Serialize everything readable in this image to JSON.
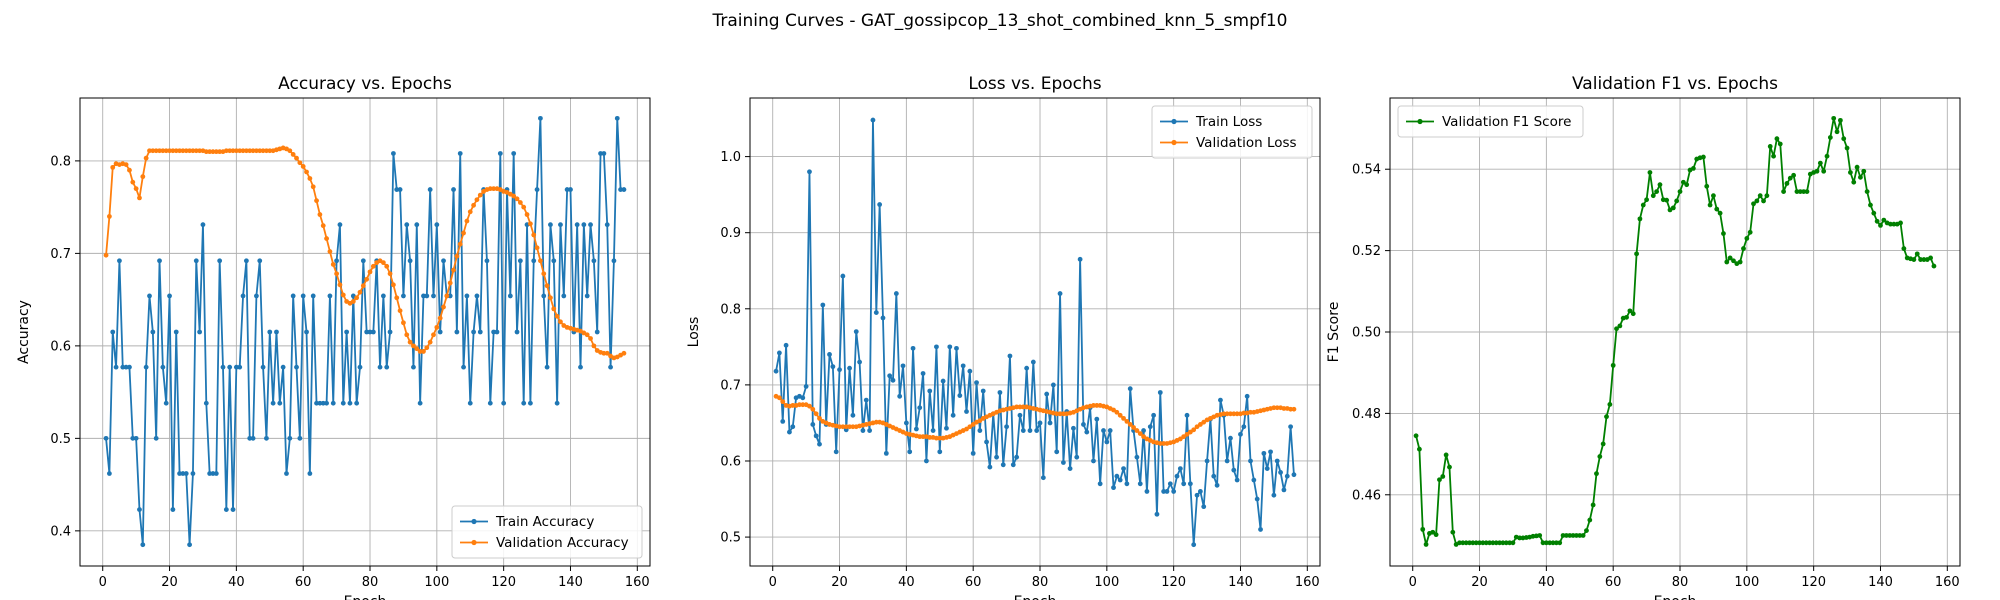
{
  "figure": {
    "title": "Training Curves - GAT_gossipcop_13_shot_combined_knn_5_smpf10"
  },
  "colors": {
    "blue": "#1f77b4",
    "orange": "#ff7f0e",
    "green": "#008000"
  },
  "chart_data": [
    {
      "type": "line",
      "title": "Accuracy vs. Epochs",
      "xlabel": "Epoch",
      "ylabel": "Accuracy",
      "xlim": [
        -6.8,
        163.8
      ],
      "ylim": [
        0.362,
        0.868
      ],
      "xticks": [
        0,
        20,
        40,
        60,
        80,
        100,
        120,
        140,
        160
      ],
      "yticks": [
        0.4,
        0.5,
        0.6,
        0.7,
        0.8
      ],
      "ytick_labels": [
        "0.4",
        "0.5",
        "0.6",
        "0.7",
        "0.8"
      ],
      "grid": true,
      "legend": "lower right",
      "x_start": 1,
      "series": [
        {
          "name": "Train Accuracy",
          "color": "#1f77b4",
          "values": [
            0.5,
            0.462,
            0.615,
            0.577,
            0.692,
            0.577,
            0.577,
            0.577,
            0.5,
            0.5,
            0.423,
            0.385,
            0.577,
            0.654,
            0.615,
            0.5,
            0.692,
            0.577,
            0.538,
            0.654,
            0.423,
            0.615,
            0.462,
            0.462,
            0.462,
            0.385,
            0.462,
            0.692,
            0.615,
            0.731,
            0.538,
            0.462,
            0.462,
            0.462,
            0.692,
            0.577,
            0.423,
            0.577,
            0.423,
            0.577,
            0.577,
            0.654,
            0.692,
            0.5,
            0.5,
            0.654,
            0.692,
            0.577,
            0.5,
            0.615,
            0.538,
            0.615,
            0.538,
            0.577,
            0.462,
            0.5,
            0.654,
            0.577,
            0.5,
            0.654,
            0.615,
            0.462,
            0.654,
            0.538,
            0.538,
            0.538,
            0.538,
            0.654,
            0.538,
            0.692,
            0.731,
            0.538,
            0.615,
            0.538,
            0.654,
            0.538,
            0.577,
            0.692,
            0.615,
            0.615,
            0.615,
            0.692,
            0.577,
            0.654,
            0.577,
            0.615,
            0.808,
            0.769,
            0.769,
            0.654,
            0.731,
            0.692,
            0.577,
            0.731,
            0.538,
            0.654,
            0.654,
            0.769,
            0.654,
            0.731,
            0.615,
            0.692,
            0.654,
            0.654,
            0.769,
            0.615,
            0.808,
            0.577,
            0.654,
            0.538,
            0.615,
            0.654,
            0.615,
            0.769,
            0.692,
            0.538,
            0.615,
            0.615,
            0.808,
            0.538,
            0.769,
            0.654,
            0.808,
            0.615,
            0.692,
            0.538,
            0.731,
            0.538,
            0.692,
            0.769,
            0.846,
            0.654,
            0.577,
            0.731,
            0.692,
            0.538,
            0.731,
            0.654,
            0.769,
            0.769,
            0.615,
            0.731,
            0.577,
            0.731,
            0.654,
            0.731,
            0.692,
            0.615,
            0.808,
            0.808,
            0.731,
            0.577,
            0.692,
            0.846,
            0.769,
            0.769
          ]
        },
        {
          "name": "Validation Accuracy",
          "color": "#ff7f0e",
          "values": [
            0.698,
            0.74,
            0.793,
            0.797,
            0.796,
            0.797,
            0.796,
            0.79,
            0.777,
            0.77,
            0.76,
            0.783,
            0.803,
            0.811,
            0.811,
            0.811,
            0.811,
            0.811,
            0.811,
            0.811,
            0.811,
            0.811,
            0.811,
            0.811,
            0.811,
            0.811,
            0.811,
            0.811,
            0.811,
            0.811,
            0.81,
            0.81,
            0.81,
            0.81,
            0.81,
            0.81,
            0.811,
            0.811,
            0.811,
            0.811,
            0.811,
            0.811,
            0.811,
            0.811,
            0.811,
            0.811,
            0.811,
            0.811,
            0.811,
            0.811,
            0.811,
            0.812,
            0.813,
            0.814,
            0.813,
            0.811,
            0.807,
            0.803,
            0.798,
            0.794,
            0.788,
            0.781,
            0.772,
            0.757,
            0.742,
            0.73,
            0.716,
            0.702,
            0.688,
            0.678,
            0.666,
            0.655,
            0.648,
            0.646,
            0.648,
            0.652,
            0.658,
            0.665,
            0.672,
            0.68,
            0.686,
            0.69,
            0.692,
            0.69,
            0.686,
            0.678,
            0.666,
            0.652,
            0.638,
            0.625,
            0.612,
            0.604,
            0.6,
            0.597,
            0.594,
            0.594,
            0.598,
            0.604,
            0.612,
            0.62,
            0.63,
            0.642,
            0.654,
            0.668,
            0.682,
            0.697,
            0.71,
            0.722,
            0.735,
            0.745,
            0.752,
            0.758,
            0.763,
            0.767,
            0.769,
            0.77,
            0.77,
            0.77,
            0.769,
            0.767,
            0.766,
            0.764,
            0.762,
            0.759,
            0.755,
            0.75,
            0.742,
            0.732,
            0.72,
            0.706,
            0.692,
            0.678,
            0.665,
            0.652,
            0.64,
            0.632,
            0.626,
            0.622,
            0.62,
            0.619,
            0.618,
            0.617,
            0.616,
            0.614,
            0.612,
            0.608,
            0.6,
            0.595,
            0.593,
            0.592,
            0.592,
            0.589,
            0.587,
            0.588,
            0.59,
            0.592
          ]
        }
      ]
    },
    {
      "type": "line",
      "title": "Loss vs. Epochs",
      "xlabel": "Epoch",
      "ylabel": "Loss",
      "xlim": [
        -6.8,
        163.8
      ],
      "ylim": [
        0.462,
        1.077
      ],
      "xticks": [
        0,
        20,
        40,
        60,
        80,
        100,
        120,
        140,
        160
      ],
      "yticks": [
        0.5,
        0.6,
        0.7,
        0.8,
        0.9,
        1.0
      ],
      "ytick_labels": [
        "0.5",
        "0.6",
        "0.7",
        "0.8",
        "0.9",
        "1.0"
      ],
      "grid": true,
      "legend": "upper right",
      "x_start": 1,
      "series": [
        {
          "name": "Train Loss",
          "color": "#1f77b4",
          "values": [
            0.718,
            0.742,
            0.652,
            0.752,
            0.638,
            0.645,
            0.683,
            0.685,
            0.683,
            0.698,
            0.98,
            0.648,
            0.633,
            0.622,
            0.805,
            0.648,
            0.74,
            0.724,
            0.612,
            0.72,
            0.843,
            0.641,
            0.722,
            0.66,
            0.77,
            0.73,
            0.64,
            0.68,
            0.64,
            1.048,
            0.795,
            0.937,
            0.788,
            0.61,
            0.712,
            0.706,
            0.82,
            0.685,
            0.725,
            0.65,
            0.612,
            0.748,
            0.642,
            0.67,
            0.715,
            0.6,
            0.692,
            0.64,
            0.75,
            0.612,
            0.705,
            0.643,
            0.75,
            0.66,
            0.748,
            0.686,
            0.725,
            0.665,
            0.718,
            0.61,
            0.703,
            0.64,
            0.692,
            0.625,
            0.592,
            0.662,
            0.605,
            0.69,
            0.595,
            0.645,
            0.738,
            0.595,
            0.605,
            0.66,
            0.64,
            0.722,
            0.64,
            0.73,
            0.64,
            0.65,
            0.578,
            0.688,
            0.65,
            0.7,
            0.612,
            0.82,
            0.598,
            0.665,
            0.59,
            0.643,
            0.605,
            0.865,
            0.648,
            0.638,
            0.67,
            0.6,
            0.655,
            0.57,
            0.64,
            0.625,
            0.64,
            0.565,
            0.58,
            0.575,
            0.59,
            0.57,
            0.695,
            0.64,
            0.605,
            0.57,
            0.64,
            0.56,
            0.645,
            0.66,
            0.53,
            0.69,
            0.56,
            0.56,
            0.57,
            0.56,
            0.58,
            0.59,
            0.57,
            0.66,
            0.57,
            0.49,
            0.555,
            0.56,
            0.54,
            0.6,
            0.655,
            0.58,
            0.568,
            0.68,
            0.66,
            0.6,
            0.63,
            0.588,
            0.575,
            0.635,
            0.645,
            0.685,
            0.6,
            0.575,
            0.55,
            0.51,
            0.61,
            0.59,
            0.612,
            0.555,
            0.6,
            0.585,
            0.562,
            0.58,
            0.645,
            0.582
          ]
        },
        {
          "name": "Validation Loss",
          "color": "#ff7f0e",
          "values": [
            0.685,
            0.683,
            0.678,
            0.673,
            0.672,
            0.673,
            0.673,
            0.674,
            0.674,
            0.674,
            0.672,
            0.668,
            0.662,
            0.656,
            0.652,
            0.65,
            0.648,
            0.647,
            0.646,
            0.645,
            0.645,
            0.645,
            0.645,
            0.645,
            0.645,
            0.646,
            0.647,
            0.648,
            0.649,
            0.65,
            0.651,
            0.651,
            0.65,
            0.648,
            0.646,
            0.644,
            0.642,
            0.64,
            0.638,
            0.636,
            0.635,
            0.634,
            0.633,
            0.632,
            0.632,
            0.632,
            0.631,
            0.631,
            0.63,
            0.63,
            0.63,
            0.631,
            0.632,
            0.634,
            0.636,
            0.638,
            0.64,
            0.642,
            0.645,
            0.648,
            0.651,
            0.653,
            0.656,
            0.658,
            0.66,
            0.662,
            0.664,
            0.666,
            0.667,
            0.668,
            0.669,
            0.67,
            0.671,
            0.671,
            0.671,
            0.671,
            0.67,
            0.669,
            0.668,
            0.667,
            0.666,
            0.665,
            0.664,
            0.663,
            0.662,
            0.662,
            0.662,
            0.662,
            0.663,
            0.664,
            0.666,
            0.668,
            0.67,
            0.671,
            0.672,
            0.673,
            0.673,
            0.673,
            0.672,
            0.671,
            0.669,
            0.667,
            0.664,
            0.66,
            0.656,
            0.652,
            0.648,
            0.644,
            0.64,
            0.636,
            0.632,
            0.629,
            0.627,
            0.625,
            0.624,
            0.623,
            0.623,
            0.623,
            0.624,
            0.625,
            0.627,
            0.629,
            0.632,
            0.635,
            0.638,
            0.641,
            0.645,
            0.648,
            0.651,
            0.654,
            0.656,
            0.658,
            0.66,
            0.661,
            0.662,
            0.662,
            0.662,
            0.662,
            0.662,
            0.662,
            0.663,
            0.663,
            0.664,
            0.664,
            0.665,
            0.666,
            0.667,
            0.668,
            0.669,
            0.67,
            0.67,
            0.67,
            0.669,
            0.669,
            0.668,
            0.668
          ]
        }
      ]
    },
    {
      "type": "line",
      "title": "Validation F1 vs. Epochs",
      "xlabel": "Epoch",
      "ylabel": "F1 Score",
      "xlim": [
        -6.8,
        163.8
      ],
      "ylim": [
        0.4425,
        0.5575
      ],
      "xticks": [
        0,
        20,
        40,
        60,
        80,
        100,
        120,
        140,
        160
      ],
      "yticks": [
        0.46,
        0.48,
        0.5,
        0.52,
        0.54
      ],
      "ytick_labels": [
        "0.46",
        "0.48",
        "0.50",
        "0.52",
        "0.54"
      ],
      "grid": true,
      "legend": "upper left",
      "x_start": 1,
      "series": [
        {
          "name": "Validation F1 Score",
          "color": "#008000",
          "values": [
            0.4745,
            0.4712,
            0.4515,
            0.4478,
            0.4505,
            0.4508,
            0.4502,
            0.4637,
            0.4645,
            0.4698,
            0.4668,
            0.4508,
            0.4478,
            0.4482,
            0.4482,
            0.4482,
            0.4482,
            0.4482,
            0.4482,
            0.4482,
            0.4482,
            0.4482,
            0.4482,
            0.4482,
            0.4482,
            0.4482,
            0.4482,
            0.4482,
            0.4482,
            0.4482,
            0.4496,
            0.4494,
            0.4494,
            0.4495,
            0.4496,
            0.4498,
            0.4499,
            0.45,
            0.4482,
            0.4482,
            0.4482,
            0.4482,
            0.4482,
            0.4482,
            0.45,
            0.45,
            0.45,
            0.45,
            0.45,
            0.45,
            0.45,
            0.4512,
            0.4538,
            0.4575,
            0.4652,
            0.4694,
            0.4725,
            0.4792,
            0.4822,
            0.4918,
            0.5008,
            0.5015,
            0.5034,
            0.5036,
            0.5052,
            0.5045,
            0.5192,
            0.5278,
            0.5312,
            0.5325,
            0.5392,
            0.5335,
            0.5345,
            0.5362,
            0.5325,
            0.5324,
            0.53,
            0.5305,
            0.5322,
            0.5345,
            0.5368,
            0.5362,
            0.5398,
            0.5402,
            0.5425,
            0.5428,
            0.543,
            0.5358,
            0.5312,
            0.5335,
            0.5302,
            0.5292,
            0.5242,
            0.5172,
            0.5182,
            0.5175,
            0.5168,
            0.5172,
            0.5205,
            0.523,
            0.5245,
            0.5315,
            0.5322,
            0.5335,
            0.5322,
            0.5335,
            0.5456,
            0.5432,
            0.5475,
            0.5462,
            0.5345,
            0.5365,
            0.5378,
            0.5385,
            0.5345,
            0.5345,
            0.5345,
            0.5345,
            0.5388,
            0.5392,
            0.5395,
            0.5415,
            0.5395,
            0.5432,
            0.5478,
            0.5525,
            0.5492,
            0.552,
            0.5475,
            0.5452,
            0.5392,
            0.5368,
            0.5405,
            0.538,
            0.5395,
            0.5345,
            0.5312,
            0.5292,
            0.5272,
            0.5262,
            0.5275,
            0.5268,
            0.5265,
            0.5265,
            0.5265,
            0.5268,
            0.5205,
            0.5182,
            0.518,
            0.5178,
            0.5192,
            0.5178,
            0.5178,
            0.5178,
            0.5182,
            0.5162
          ]
        }
      ]
    }
  ]
}
